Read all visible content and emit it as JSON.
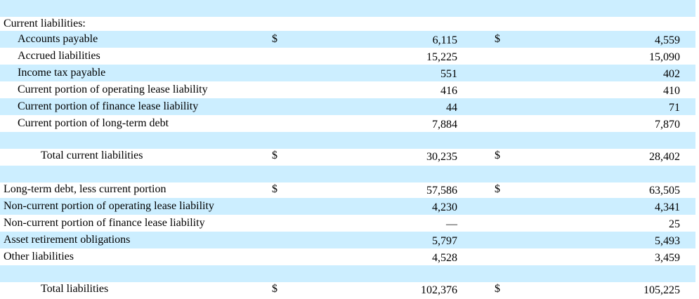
{
  "rows": [
    {
      "label": "",
      "shaded": true
    },
    {
      "label": "Current liabilities:",
      "indent": 0,
      "shaded": false
    },
    {
      "label": "Accounts payable",
      "indent": 1,
      "shaded": true,
      "dollar1": "$",
      "v1": "6,115",
      "dollar2": "$",
      "v2": "4,559"
    },
    {
      "label": "Accrued liabilities",
      "indent": 1,
      "shaded": false,
      "v1": "15,225",
      "v2": "15,090"
    },
    {
      "label": "Income tax payable",
      "indent": 1,
      "shaded": true,
      "v1": "551",
      "v2": "402"
    },
    {
      "label": "Current portion of operating lease liability",
      "indent": 1,
      "shaded": false,
      "v1": "416",
      "v2": "410"
    },
    {
      "label": "Current portion of finance lease liability",
      "indent": 1,
      "shaded": true,
      "v1": "44",
      "v2": "71"
    },
    {
      "label": "Current portion of long-term debt",
      "indent": 1,
      "shaded": false,
      "v1": "7,884",
      "v2": "7,870",
      "rule": true
    },
    {
      "label": "",
      "shaded": true
    },
    {
      "label": "Total current liabilities",
      "indent": 2,
      "shaded": false,
      "dollar1": "$",
      "v1": "30,235",
      "dollar2": "$",
      "v2": "28,402"
    },
    {
      "label": "",
      "shaded": true
    },
    {
      "label": "Long-term debt, less current portion",
      "indent": 0,
      "shaded": false,
      "dollar1": "$",
      "v1": "57,586",
      "dollar2": "$",
      "v2": "63,505"
    },
    {
      "label": "Non-current portion of operating lease liability",
      "indent": 0,
      "shaded": true,
      "v1": "4,230",
      "v2": "4,341"
    },
    {
      "label": "Non-current portion of finance lease liability",
      "indent": 0,
      "shaded": false,
      "v1": "—",
      "v2": "25"
    },
    {
      "label": "Asset retirement obligations",
      "indent": 0,
      "shaded": true,
      "v1": "5,797",
      "v2": "5,493"
    },
    {
      "label": "Other liabilities",
      "indent": 0,
      "shaded": false,
      "v1": "4,528",
      "v2": "3,459",
      "rule": true
    },
    {
      "label": "",
      "shaded": true
    },
    {
      "label": "Total liabilities",
      "indent": 2,
      "shaded": false,
      "dollar1": "$",
      "v1": "102,376",
      "dollar2": "$",
      "v2": "105,225"
    }
  ]
}
